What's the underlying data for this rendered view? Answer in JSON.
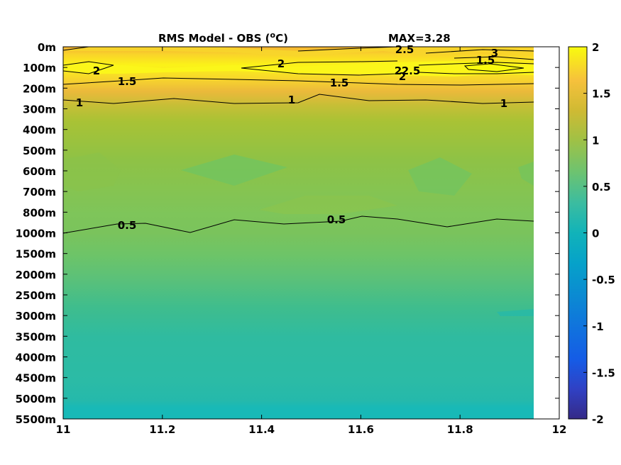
{
  "chart_data": {
    "type": "heatmap",
    "title": "RMS Model - OBS (",
    "title_unit_super": "o",
    "title_unit_suffix": "C)",
    "max_label": "MAX=3.28",
    "xlim": [
      11,
      12
    ],
    "x_ticks": [
      "11",
      "11.2",
      "11.4",
      "11.6",
      "11.8",
      "12"
    ],
    "y_tick_labels": [
      "0m",
      "100m",
      "200m",
      "300m",
      "400m",
      "500m",
      "600m",
      "700m",
      "800m",
      "1000m",
      "1500m",
      "2000m",
      "2500m",
      "3000m",
      "3500m",
      "4000m",
      "4500m",
      "5000m",
      "5500m"
    ],
    "colorbar": {
      "range": [
        -2,
        2
      ],
      "ticks": [
        "2",
        "1.5",
        "1",
        "0.5",
        "0",
        "-0.5",
        "-1",
        "-1.5",
        "-2"
      ],
      "colormap": "parula"
    },
    "contour_levels": [
      0.5,
      1,
      1.5,
      2,
      2.5,
      3
    ],
    "contour_labels": [
      "2",
      "1.5",
      "2",
      "2.5",
      "2",
      "3",
      "1.5",
      "2",
      "1.5",
      "2.5",
      "1",
      "1",
      "1",
      "0.5",
      "0.5"
    ],
    "profile_rms": [
      {
        "depth": "0m",
        "value": 1.4
      },
      {
        "depth": "100m",
        "value": 1.95
      },
      {
        "depth": "200m",
        "value": 1.3
      },
      {
        "depth": "300m",
        "value": 1.0
      },
      {
        "depth": "400m",
        "value": 0.85
      },
      {
        "depth": "500m",
        "value": 0.75
      },
      {
        "depth": "600m",
        "value": 0.68
      },
      {
        "depth": "700m",
        "value": 0.7
      },
      {
        "depth": "800m",
        "value": 0.66
      },
      {
        "depth": "1000m",
        "value": 0.52
      },
      {
        "depth": "1500m",
        "value": 0.42
      },
      {
        "depth": "2000m",
        "value": 0.34
      },
      {
        "depth": "2500m",
        "value": 0.28
      },
      {
        "depth": "3000m",
        "value": 0.26
      },
      {
        "depth": "3500m",
        "value": 0.24
      },
      {
        "depth": "4000m",
        "value": 0.23
      },
      {
        "depth": "4500m",
        "value": 0.22
      },
      {
        "depth": "5000m",
        "value": 0.2
      },
      {
        "depth": "5500m",
        "value": 0.15
      }
    ]
  }
}
